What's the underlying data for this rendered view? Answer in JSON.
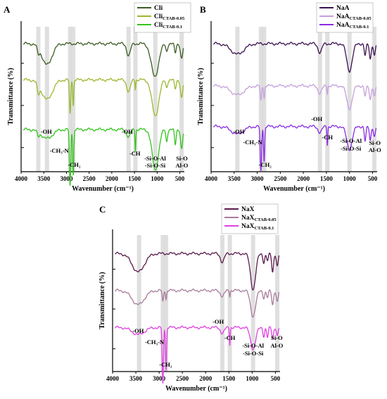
{
  "chart_data": [
    {
      "panel": "A",
      "type": "line",
      "xlabel": "Wavenumber (cm⁻¹)",
      "ylabel": "Transmittance (%)",
      "xlim": [
        4000,
        400
      ],
      "x_ticks": [
        "4000",
        "3500",
        "3000",
        "2500",
        "2000",
        "1500",
        "1000",
        "500"
      ],
      "legend": "top-right",
      "series": [
        {
          "name": "Cli",
          "sub": "",
          "color": "#3b5b22",
          "baseline": 0.15
        },
        {
          "name": "Cli",
          "sub": "CTAB-0.05",
          "color": "#9ab82d",
          "baseline": 0.39
        },
        {
          "name": "Cli",
          "sub": "CTAB-0.1",
          "color": "#33c41c",
          "baseline": 0.72
        }
      ],
      "bands": [
        3620,
        3430,
        2920,
        2850,
        1630,
        1480,
        1040,
        460
      ],
      "annotations": [
        {
          "text": "-OH"
        },
        {
          "text": "-CH₃-N"
        },
        {
          "text": "-CH₂"
        },
        {
          "text": "-OH"
        },
        {
          "text": "-CH"
        },
        {
          "text": "-Si-O-Al"
        },
        {
          "text": "-Si-O-Si"
        },
        {
          "text": "Si-O"
        },
        {
          "text": "Al-O"
        }
      ]
    },
    {
      "panel": "B",
      "type": "line",
      "xlabel": "Wavenumber (cm⁻¹)",
      "ylabel": "Transmittance (%)",
      "xlim": [
        4000,
        400
      ],
      "x_ticks": [
        "4000",
        "3500",
        "3000",
        "2500",
        "2000",
        "1500",
        "1000",
        "500"
      ],
      "legend": "top-right",
      "series": [
        {
          "name": "NaA",
          "sub": "",
          "color": "#3a1050",
          "baseline": 0.15
        },
        {
          "name": "NaA",
          "sub": "CTAB-0.05",
          "color": "#c4a0dc",
          "baseline": 0.43
        },
        {
          "name": "NaA",
          "sub": "CTAB-0.1",
          "color": "#8a2be2",
          "baseline": 0.7
        }
      ],
      "bands": [
        3430,
        2920,
        2850,
        1640,
        1480,
        1000,
        460
      ],
      "annotations": [
        {
          "text": "-OH"
        },
        {
          "text": "-CH₃-N"
        },
        {
          "text": "-CH₂"
        },
        {
          "text": "-OH"
        },
        {
          "text": "-CH"
        },
        {
          "text": "-Si-O-Al"
        },
        {
          "text": "-Si-O-Si"
        },
        {
          "text": "Si-O"
        },
        {
          "text": "Al-O"
        }
      ]
    },
    {
      "panel": "C",
      "type": "line",
      "xlabel": "Wavenumber (cm⁻¹)",
      "ylabel": "Transmittance (%)",
      "xlim": [
        4000,
        400
      ],
      "x_ticks": [
        "4000",
        "3500",
        "3000",
        "2500",
        "2000",
        "1500",
        "1000",
        "500"
      ],
      "legend": "top-right",
      "series": [
        {
          "name": "NaX",
          "sub": "",
          "color": "#5a1a4a",
          "baseline": 0.17
        },
        {
          "name": "NaX",
          "sub": "CTAB-0.05",
          "color": "#a77b9b",
          "baseline": 0.43
        },
        {
          "name": "NaX",
          "sub": "CTAB-0.1",
          "color": "#e040e0",
          "baseline": 0.69
        }
      ],
      "bands": [
        3430,
        2920,
        2850,
        1640,
        1480,
        980,
        460
      ],
      "annotations": [
        {
          "text": "-OH"
        },
        {
          "text": "-CH₃-N"
        },
        {
          "text": "-CH₂"
        },
        {
          "text": "-OH"
        },
        {
          "text": "-CH"
        },
        {
          "text": "-Si-O-Al"
        },
        {
          "text": "-Si-O-Si"
        },
        {
          "text": "Si-O"
        },
        {
          "text": "Al-O"
        }
      ]
    }
  ]
}
